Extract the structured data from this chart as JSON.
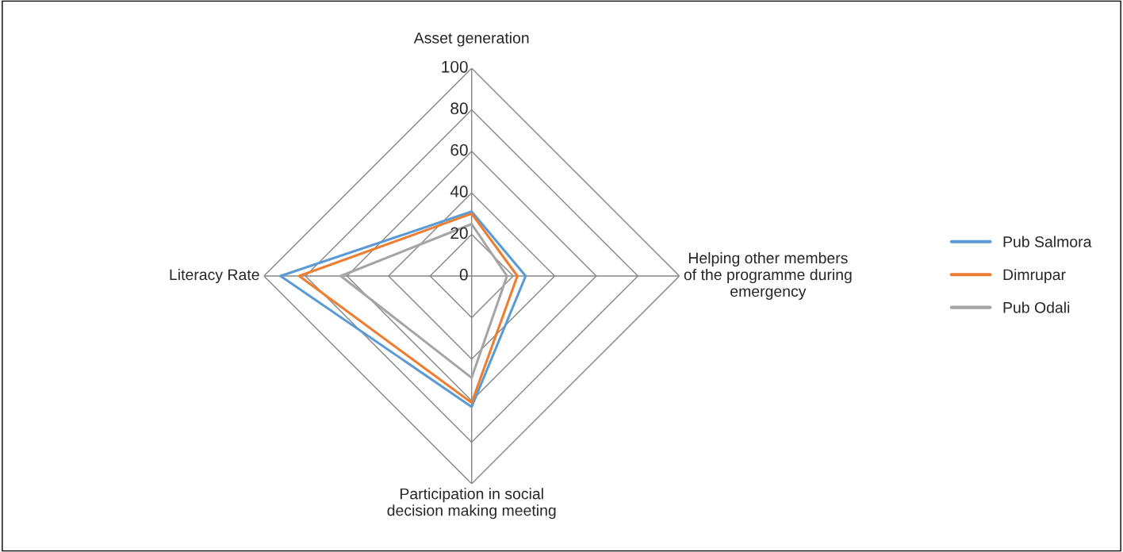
{
  "chart_data": {
    "type": "radar",
    "categories": [
      "Asset generation",
      "Helping other members\nof the programme during\nemergency",
      "Participation in social\ndecision making meeting",
      "Literacy Rate"
    ],
    "series": [
      {
        "name": "Pub Salmora",
        "color": "#5b9bd5",
        "values": [
          31,
          26,
          63,
          92
        ]
      },
      {
        "name": "Dimrupar",
        "color": "#ed7d31",
        "values": [
          30,
          22,
          61,
          83
        ]
      },
      {
        "name": "Pub Odali",
        "color": "#a5a5a5",
        "values": [
          25,
          17,
          49,
          63
        ]
      }
    ],
    "ylim": [
      0,
      100
    ],
    "yticks": [
      0,
      20,
      40,
      60,
      80,
      100
    ],
    "grid": true,
    "legend": "right",
    "marker": "none",
    "line_style": "solid"
  }
}
